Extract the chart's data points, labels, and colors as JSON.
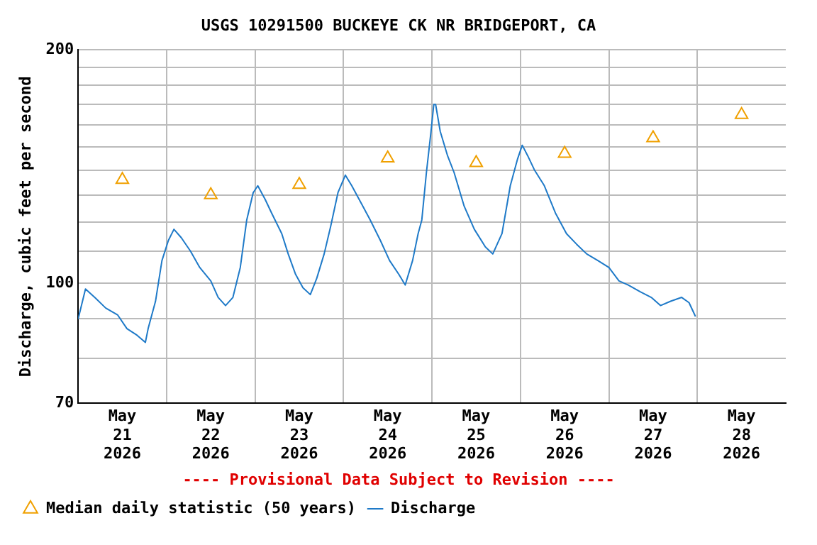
{
  "chart_data": {
    "type": "line",
    "title": "USGS 10291500 BUCKEYE CK NR BRIDGEPORT, CA",
    "ylabel": "Discharge, cubic feet per second",
    "annotations": [
      "---- Provisional Data Subject to Revision ----"
    ],
    "log": "y",
    "grid": true,
    "legend": "bottom",
    "ylim": [
      70,
      200
    ],
    "yticks": [
      70,
      {
        "value": 80,
        "label": null
      },
      {
        "value": 90,
        "label": null
      },
      100,
      {
        "value": 110,
        "label": null
      },
      {
        "value": 120,
        "label": null
      },
      {
        "value": 130,
        "label": null
      },
      {
        "value": 140,
        "label": null
      },
      {
        "value": 150,
        "label": null
      },
      {
        "value": 160,
        "label": null
      },
      {
        "value": 170,
        "label": null
      },
      {
        "value": 180,
        "label": null
      },
      {
        "value": 190,
        "label": null
      },
      200
    ],
    "xlim": [
      "2026-05-21T00:00",
      "2026-05-29T00:00"
    ],
    "xticks": [
      {
        "value": "2026-05-21T12:00",
        "label": "May 21 2026"
      },
      {
        "value": "2026-05-22T00:00",
        "label": null
      },
      {
        "value": "2026-05-22T12:00",
        "label": "May 22 2026"
      },
      {
        "value": "2026-05-23T00:00",
        "label": null
      },
      {
        "value": "2026-05-23T12:00",
        "label": "May 23 2026"
      },
      {
        "value": "2026-05-24T00:00",
        "label": null
      },
      {
        "value": "2026-05-24T12:00",
        "label": "May 24 2026"
      },
      {
        "value": "2026-05-25T00:00",
        "label": null
      },
      {
        "value": "2026-05-25T12:00",
        "label": "May 25 2026"
      },
      {
        "value": "2026-05-26T00:00",
        "label": null
      },
      {
        "value": "2026-05-26T12:00",
        "label": "May 26 2026"
      },
      {
        "value": "2026-05-27T00:00",
        "label": null
      },
      {
        "value": "2026-05-27T12:00",
        "label": "May 27 2026"
      },
      {
        "value": "2026-05-28T00:00",
        "label": null
      },
      {
        "value": "2026-05-28T12:00",
        "label": "May 28 2026"
      }
    ],
    "series": [
      {
        "name": "Median daily statistic (50 years)",
        "type": "scatter",
        "marker": "triangle",
        "color": "#f0a000",
        "x": [
          "2026-05-21T12:00",
          "2026-05-22T12:00",
          "2026-05-23T12:00",
          "2026-05-24T12:00",
          "2026-05-25T12:00",
          "2026-05-26T12:00",
          "2026-05-27T12:00",
          "2026-05-28T12:00"
        ],
        "values": [
          136,
          130,
          134,
          145,
          143,
          147,
          154,
          165
        ]
      },
      {
        "name": "Discharge",
        "marker": "none",
        "color": "#1f7ac8",
        "x": [
          "2026-05-21T00:00",
          "2026-05-21T02:00",
          "2026-05-21T04:30",
          "2026-05-21T07:30",
          "2026-05-21T10:45",
          "2026-05-21T13:15",
          "2026-05-21T16:00",
          "2026-05-21T18:15",
          "2026-05-21T19:00",
          "2026-05-21T21:00",
          "2026-05-21T22:45",
          "2026-05-22T00:30",
          "2026-05-22T02:00",
          "2026-05-22T04:00",
          "2026-05-22T06:30",
          "2026-05-22T09:00",
          "2026-05-22T12:00",
          "2026-05-22T14:00",
          "2026-05-22T16:00",
          "2026-05-22T18:00",
          "2026-05-22T20:00",
          "2026-05-22T21:45",
          "2026-05-22T23:30",
          "2026-05-23T00:45",
          "2026-05-23T02:45",
          "2026-05-23T04:30",
          "2026-05-23T07:15",
          "2026-05-23T09:00",
          "2026-05-23T11:00",
          "2026-05-23T13:00",
          "2026-05-23T15:00",
          "2026-05-23T16:45",
          "2026-05-23T18:45",
          "2026-05-23T20:30",
          "2026-05-23T22:30",
          "2026-05-24T00:30",
          "2026-05-24T02:15",
          "2026-05-24T04:15",
          "2026-05-24T07:15",
          "2026-05-24T10:00",
          "2026-05-24T12:30",
          "2026-05-24T15:00",
          "2026-05-24T16:45",
          "2026-05-24T18:45",
          "2026-05-24T20:15",
          "2026-05-24T21:15",
          "2026-05-24T22:30",
          "2026-05-24T23:45",
          "2026-05-25T00:30",
          "2026-05-25T01:00",
          "2026-05-25T02:15",
          "2026-05-25T04:15",
          "2026-05-25T06:00",
          "2026-05-25T08:45",
          "2026-05-25T11:30",
          "2026-05-25T14:30",
          "2026-05-25T16:30",
          "2026-05-25T19:00",
          "2026-05-25T21:15",
          "2026-05-25T23:15",
          "2026-05-26T00:30",
          "2026-05-26T02:00",
          "2026-05-26T03:45",
          "2026-05-26T06:30",
          "2026-05-26T09:30",
          "2026-05-26T12:30",
          "2026-05-26T15:15",
          "2026-05-26T18:00",
          "2026-05-26T21:00",
          "2026-05-27T00:00",
          "2026-05-27T02:45",
          "2026-05-27T05:15",
          "2026-05-27T08:30",
          "2026-05-27T11:30",
          "2026-05-27T14:00",
          "2026-05-27T16:45",
          "2026-05-27T19:45",
          "2026-05-27T21:45",
          "2026-05-27T23:30"
        ],
        "values": [
          89.9,
          98.3,
          95.9,
          92.9,
          91.0,
          87.4,
          85.7,
          83.9,
          87.4,
          94.8,
          107,
          113.6,
          117.4,
          114.5,
          110,
          104.8,
          100.7,
          95.9,
          93.6,
          95.9,
          104.8,
          120.7,
          130.9,
          133.6,
          128.3,
          123.2,
          115.9,
          109.1,
          102.7,
          98.7,
          96.7,
          101.5,
          109.1,
          118.3,
          130.9,
          137.9,
          133.6,
          128.3,
          120.7,
          113.6,
          107,
          102.7,
          99.5,
          107,
          115.9,
          120.7,
          139,
          157,
          170.1,
          170.1,
          157,
          146,
          139,
          125.7,
          117.4,
          111.4,
          109.1,
          115.9,
          133.6,
          144.8,
          150.7,
          146,
          140.2,
          133.6,
          123.2,
          115.9,
          112.3,
          109.1,
          107,
          104.8,
          100.7,
          99.5,
          97.5,
          95.9,
          93.6,
          94.8,
          95.9,
          94.4,
          90.6
        ]
      }
    ]
  }
}
